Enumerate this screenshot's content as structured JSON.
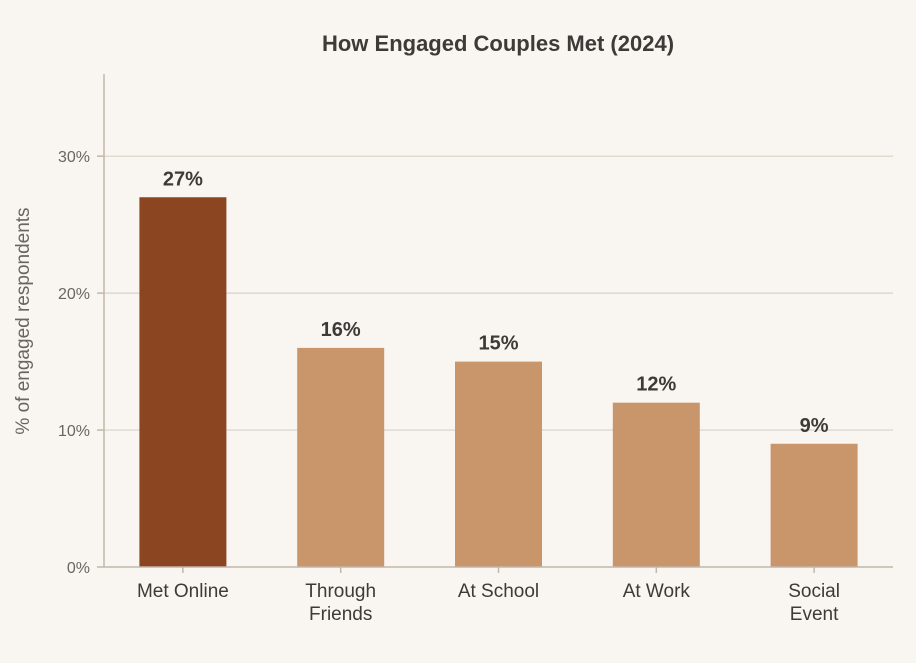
{
  "colors": {
    "background": "#f9f6f2",
    "highlight_bar": "#8b4520",
    "bar": "#c9956b"
  },
  "chart_data": {
    "type": "bar",
    "title": "How Engaged Couples Met (2024)",
    "xlabel": "",
    "ylabel": "% of engaged respondents",
    "categories": [
      [
        "Met Online"
      ],
      [
        "Through",
        "Friends"
      ],
      [
        "At School"
      ],
      [
        "At Work"
      ],
      [
        "Social",
        "Event"
      ]
    ],
    "values": [
      27,
      16,
      15,
      12,
      9
    ],
    "value_labels": [
      "27%",
      "16%",
      "15%",
      "12%",
      "9%"
    ],
    "highlight_index": 0,
    "ylim": [
      0,
      36
    ],
    "yticks": [
      0,
      10,
      20,
      30
    ],
    "ytick_labels": [
      "0%",
      "10%",
      "20%",
      "30%"
    ],
    "grid": true,
    "legend": "none"
  }
}
